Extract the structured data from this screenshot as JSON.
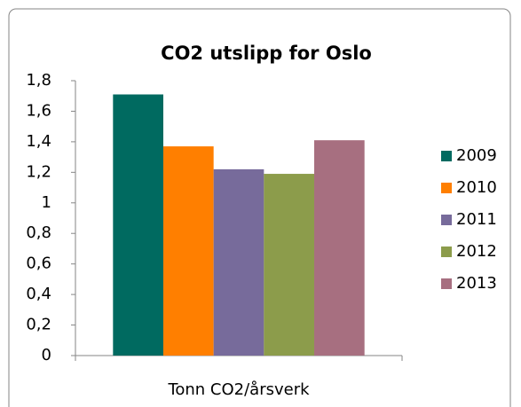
{
  "chart_data": {
    "type": "bar",
    "title": "CO2 utslipp for Oslo",
    "categories": [
      "Tonn CO2/årsverk"
    ],
    "series": [
      {
        "name": "2009",
        "color": "#006a60",
        "values": [
          1.71
        ]
      },
      {
        "name": "2010",
        "color": "#ff7f00",
        "values": [
          1.37
        ]
      },
      {
        "name": "2011",
        "color": "#776b9b",
        "values": [
          1.22
        ]
      },
      {
        "name": "2012",
        "color": "#8c9c4b",
        "values": [
          1.19
        ]
      },
      {
        "name": "2013",
        "color": "#a76f80",
        "values": [
          1.41
        ]
      }
    ],
    "ylim": [
      0,
      1.8
    ],
    "yticks": [
      0,
      {
        "value": 0.2,
        "label": "0,2"
      },
      {
        "value": 0.4,
        "label": "0,4"
      },
      {
        "value": 0.6,
        "label": "0,6"
      },
      {
        "value": 0.8,
        "label": "0,8"
      },
      1,
      {
        "value": 1.2,
        "label": "1,2"
      },
      {
        "value": 1.4,
        "label": "1,4"
      },
      {
        "value": 1.6,
        "label": "1,6"
      },
      {
        "value": 1.8,
        "label": "1,8"
      }
    ],
    "legend": "right"
  }
}
